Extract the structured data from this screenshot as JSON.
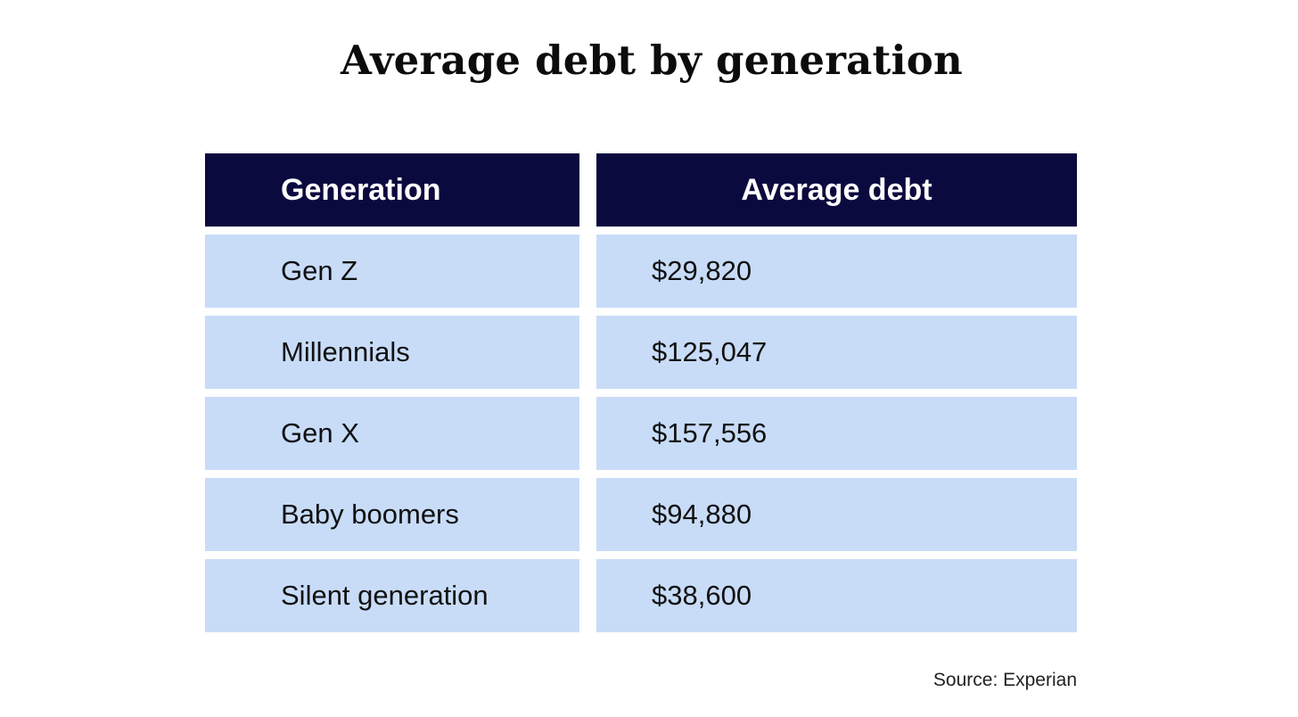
{
  "chart_data": {
    "type": "table",
    "title": "Average debt by generation",
    "columns": [
      "Generation",
      "Average debt"
    ],
    "rows": [
      {
        "generation": "Gen Z",
        "average_debt": "$29,820"
      },
      {
        "generation": "Millennials",
        "average_debt": "$125,047"
      },
      {
        "generation": "Gen X",
        "average_debt": "$157,556"
      },
      {
        "generation": "Baby boomers",
        "average_debt": "$94,880"
      },
      {
        "generation": "Silent generation",
        "average_debt": "$38,600"
      }
    ],
    "source": "Source: Experian"
  },
  "colors": {
    "header_bg": "#0b0a3f",
    "row_bg": "#c8dcf8",
    "header_text": "#ffffff"
  }
}
